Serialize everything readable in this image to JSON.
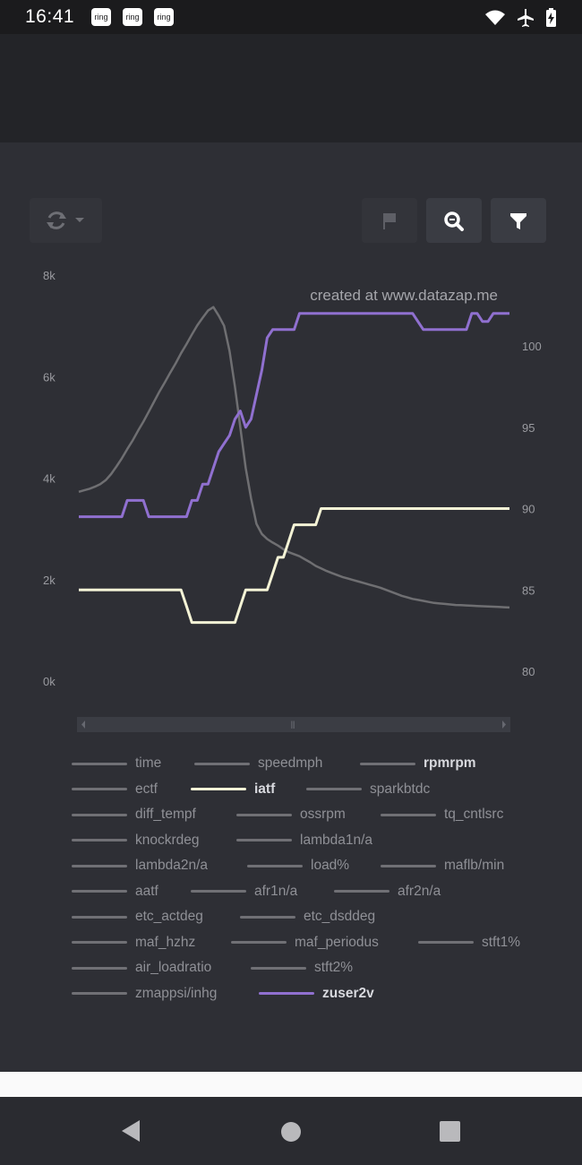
{
  "status_bar": {
    "time": "16:41",
    "notifications": [
      "ring",
      "ring",
      "ring"
    ],
    "icons": [
      "wifi-icon",
      "airplane-icon",
      "battery-charging-icon"
    ]
  },
  "toolbar": {
    "left_button_icons": [
      "refresh-icon",
      "caret-down-icon"
    ],
    "right_button_icons": [
      "flag-icon",
      "zoom-icon",
      "filter-icon"
    ]
  },
  "chart": {
    "watermark": "created at www.datazap.me",
    "y_left_ticks": [
      "8k",
      "6k",
      "4k",
      "2k",
      "0k"
    ],
    "y_right_ticks": [
      "100",
      "95",
      "90",
      "85",
      "80"
    ],
    "scrollbar_grip": "⦀"
  },
  "chart_data": {
    "type": "line",
    "x": [
      0,
      1,
      2,
      3,
      4,
      5,
      6,
      7,
      8,
      9,
      10,
      11,
      12,
      13,
      14,
      15,
      16,
      17,
      18,
      19,
      20,
      21,
      22,
      23,
      24,
      25,
      26,
      27,
      28,
      29,
      30,
      31,
      32,
      33,
      34,
      35,
      36,
      37,
      38,
      39,
      40,
      41,
      42,
      43,
      44,
      45,
      46,
      47,
      48,
      49,
      50,
      51,
      52,
      53,
      54,
      55,
      56,
      57,
      58,
      59,
      60,
      61,
      62,
      63,
      64,
      65,
      66,
      67,
      68,
      69,
      70,
      71,
      72,
      73,
      74,
      75,
      76,
      77,
      78,
      79,
      80
    ],
    "ylim_left": [
      0,
      8000
    ],
    "ylim_right": [
      80,
      102.5
    ],
    "series": [
      {
        "name": "rpmrpm",
        "axis": "left",
        "color": "#6f6f72",
        "values": [
          3730,
          3760,
          3790,
          3830,
          3880,
          3960,
          4080,
          4230,
          4390,
          4570,
          4740,
          4930,
          5110,
          5310,
          5510,
          5710,
          5890,
          6080,
          6260,
          6460,
          6640,
          6830,
          7010,
          7160,
          7300,
          7370,
          7200,
          7000,
          6500,
          5800,
          5000,
          4200,
          3600,
          3100,
          2900,
          2800,
          2730,
          2670,
          2600,
          2540,
          2500,
          2460,
          2400,
          2340,
          2270,
          2220,
          2170,
          2130,
          2090,
          2050,
          2020,
          1990,
          1960,
          1930,
          1900,
          1870,
          1840,
          1800,
          1760,
          1720,
          1680,
          1650,
          1620,
          1600,
          1580,
          1560,
          1540,
          1530,
          1520,
          1510,
          1500,
          1495,
          1490,
          1485,
          1480,
          1475,
          1470,
          1465,
          1460,
          1455,
          1450
        ]
      },
      {
        "name": "iatf",
        "axis": "right",
        "color": "#f4f3d6",
        "values": [
          85,
          85,
          85,
          85,
          85,
          85,
          85,
          85,
          85,
          85,
          85,
          85,
          85,
          85,
          85,
          85,
          85,
          85,
          85,
          85,
          84,
          83,
          83,
          83,
          83,
          83,
          83,
          83,
          83,
          83,
          84,
          85,
          85,
          85,
          85,
          85,
          86,
          87,
          87,
          88,
          89,
          89,
          89,
          89,
          89,
          90,
          90,
          90,
          90,
          90,
          90,
          90,
          90,
          90,
          90,
          90,
          90,
          90,
          90,
          90,
          90,
          90,
          90,
          90,
          90,
          90,
          90,
          90,
          90,
          90,
          90,
          90,
          90,
          90,
          90,
          90,
          90,
          90,
          90,
          90,
          90
        ]
      },
      {
        "name": "zuser2v",
        "axis": "right",
        "color": "#9070d0",
        "values": [
          89.5,
          89.5,
          89.5,
          89.5,
          89.5,
          89.5,
          89.5,
          89.5,
          89.5,
          90.5,
          90.5,
          90.5,
          90.5,
          89.5,
          89.5,
          89.5,
          89.5,
          89.5,
          89.5,
          89.5,
          89.5,
          90.5,
          90.5,
          91.5,
          91.5,
          92.5,
          93.5,
          94,
          94.5,
          95.5,
          96,
          95,
          95.5,
          97,
          98.5,
          100.5,
          101,
          101,
          101,
          101,
          101,
          102,
          102,
          102,
          102,
          102,
          102,
          102,
          102,
          102,
          102,
          102,
          102,
          102,
          102,
          102,
          102,
          102,
          102,
          102,
          102,
          102,
          102,
          101.5,
          101,
          101,
          101,
          101,
          101,
          101,
          101,
          101,
          101,
          102,
          102,
          101.5,
          101.5,
          102,
          102,
          102,
          102
        ]
      }
    ]
  },
  "legend": [
    [
      {
        "label": "time",
        "on": false
      },
      {
        "label": "speedmph",
        "on": false
      },
      {
        "label": "rpmrpm",
        "on": true
      }
    ],
    [
      {
        "label": "ectf",
        "on": false
      },
      {
        "label": "iatf",
        "on": true,
        "color": "#f4f3d6"
      },
      {
        "label": "sparkbtdc",
        "on": false
      }
    ],
    [
      {
        "label": "diff_tempf",
        "on": false
      },
      {
        "label": "ossrpm",
        "on": false
      },
      {
        "label": "tq_cntlsrc",
        "on": false
      }
    ],
    [
      {
        "label": "knockrdeg",
        "on": false
      },
      {
        "label": "lambda1n/a",
        "on": false
      }
    ],
    [
      {
        "label": "lambda2n/a",
        "on": false
      },
      {
        "label": "load%",
        "on": false
      },
      {
        "label": "maflb/min",
        "on": false
      }
    ],
    [
      {
        "label": "aatf",
        "on": false
      },
      {
        "label": "afr1n/a",
        "on": false
      },
      {
        "label": "afr2n/a",
        "on": false
      }
    ],
    [
      {
        "label": "etc_actdeg",
        "on": false
      },
      {
        "label": "etc_dsddeg",
        "on": false
      }
    ],
    [
      {
        "label": "maf_hzhz",
        "on": false
      },
      {
        "label": "maf_periodus",
        "on": false
      },
      {
        "label": "stft1%",
        "on": false
      }
    ],
    [
      {
        "label": "air_loadratio",
        "on": false
      },
      {
        "label": "stft2%",
        "on": false
      }
    ],
    [
      {
        "label": "zmappsi/inhg",
        "on": false
      },
      {
        "label": "zuser2v",
        "on": true,
        "color": "#9070d0"
      }
    ]
  ],
  "nav": [
    "back-icon",
    "home-icon",
    "recents-icon"
  ]
}
